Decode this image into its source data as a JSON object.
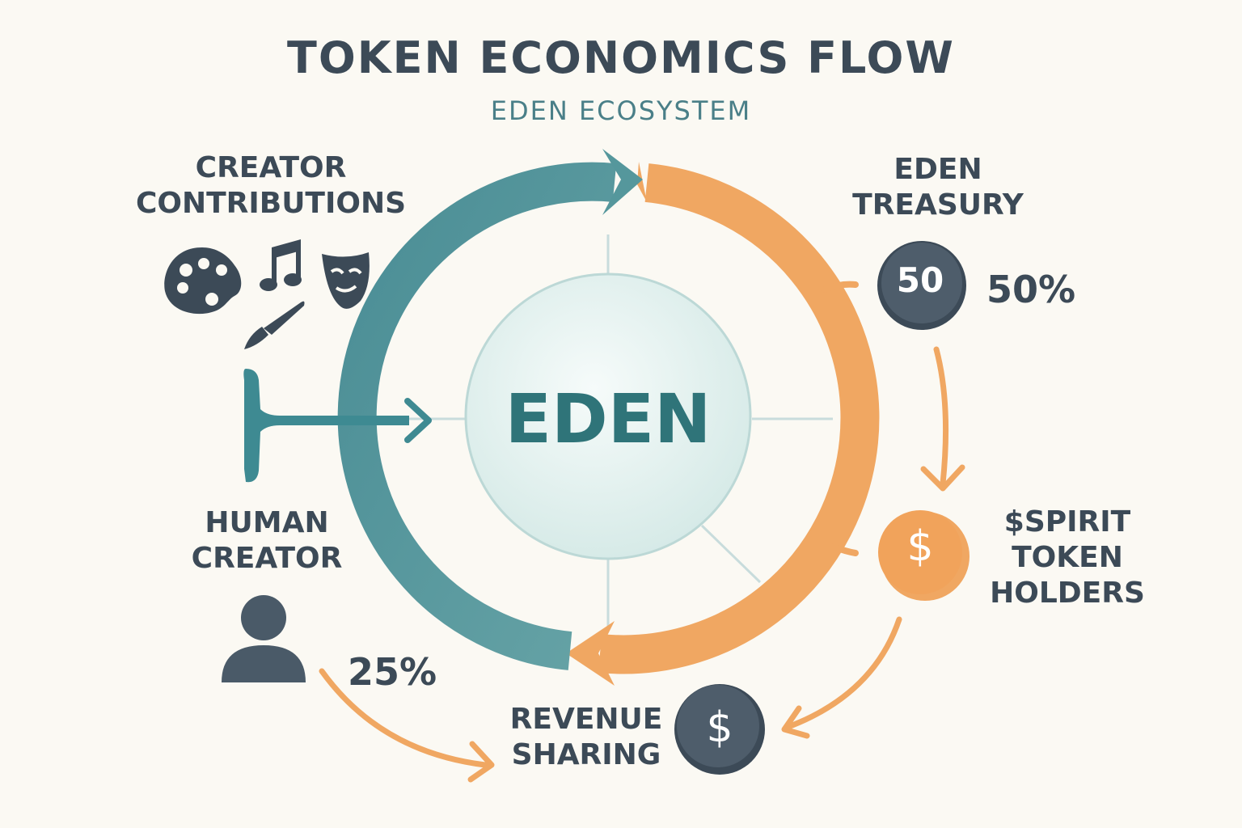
{
  "header": {
    "title": "TOKEN ECONOMICS FLOW",
    "subtitle": "EDEN ECOSYSTEM"
  },
  "nodes": {
    "creator_contributions": {
      "lines": [
        "CREATOR",
        "CONTRIBUTIONS"
      ]
    },
    "eden_treasury": {
      "lines": [
        "EDEN",
        "TREASURY"
      ],
      "coin_label": "50",
      "share": "50%"
    },
    "human_creator": {
      "lines": [
        "HUMAN",
        "CREATOR"
      ],
      "share": "25%"
    },
    "spirit_holders": {
      "lines": [
        "$SPIRIT",
        "TOKEN",
        "HOLDERS"
      ],
      "coin_label": "$"
    },
    "revenue_sharing": {
      "lines": [
        "REVENUE",
        "SHARING"
      ],
      "coin_label": "$"
    },
    "center": {
      "label": "EDEN"
    }
  },
  "icons": [
    "palette-icon",
    "music-note-icon",
    "theater-mask-icon",
    "paintbrush-icon",
    "person-icon",
    "coin-icon",
    "dollar-coin-icon"
  ],
  "colors": {
    "background": "#fbf9f3",
    "teal": "#4f949b",
    "orange": "#f0a762",
    "dark": "#3c4a57",
    "center_fill": "#e3f0ee"
  }
}
